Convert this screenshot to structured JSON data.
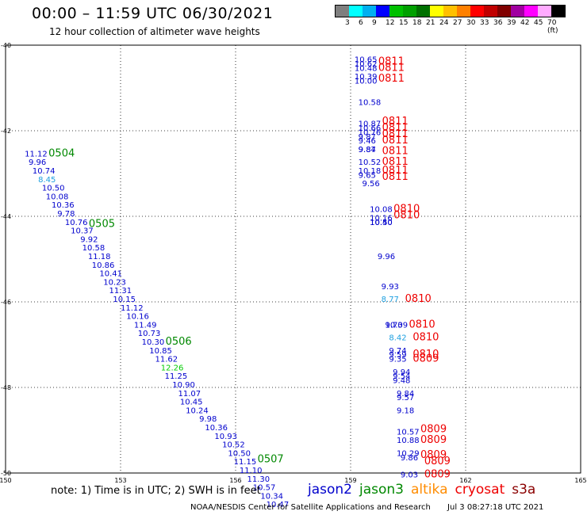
{
  "header": {
    "title": "00:00 – 11:59 UTC 06/30/2021",
    "subtitle": "12 hour collection of altimeter wave heights"
  },
  "color_scale": {
    "labels": [
      "3",
      "6",
      "9",
      "12",
      "15",
      "18",
      "21",
      "24",
      "27",
      "30",
      "33",
      "36",
      "39",
      "42",
      "45",
      "70 (ft)"
    ],
    "colors": [
      "#7f7f7f",
      "#00ffff",
      "#00b0f0",
      "#0000ff",
      "#00c000",
      "#00a000",
      "#007000",
      "#ffff00",
      "#ffc000",
      "#ff8000",
      "#ff0000",
      "#c00000",
      "#800000",
      "#a000a0",
      "#ff00ff",
      "#ffaaff",
      "#000000"
    ]
  },
  "axes": {
    "lat_labels": [
      "-40",
      "-42",
      "-44",
      "-46",
      "-48",
      "-50"
    ],
    "lon_labels": [
      "150",
      "153",
      "156",
      "159",
      "162",
      "165"
    ]
  },
  "passes": [
    {
      "satellite": "jason3",
      "times": [
        {
          "label": "0504",
          "lat": -42.6
        },
        {
          "label": "0505",
          "lat": -44.25
        },
        {
          "label": "0506",
          "lat": -47.0
        },
        {
          "label": "0507",
          "lat": -49.75
        }
      ],
      "observations": [
        {
          "lat": -42.6,
          "lon": 150.5,
          "value": "11.12",
          "color": "#0000cd"
        },
        {
          "lat": -42.8,
          "lon": 150.6,
          "value": "9.96",
          "color": "#0000cd"
        },
        {
          "lat": -43.0,
          "lon": 150.7,
          "value": "10.74",
          "color": "#0000cd"
        },
        {
          "lat": -43.2,
          "lon": 150.85,
          "value": "8.45",
          "color": "#1ea0e0"
        },
        {
          "lat": -43.4,
          "lon": 150.95,
          "value": "10.50",
          "color": "#0000cd"
        },
        {
          "lat": -43.6,
          "lon": 151.05,
          "value": "10.08",
          "color": "#0000cd"
        },
        {
          "lat": -43.8,
          "lon": 151.2,
          "value": "10.36",
          "color": "#0000cd"
        },
        {
          "lat": -44.0,
          "lon": 151.35,
          "value": "9.78",
          "color": "#0000cd"
        },
        {
          "lat": -44.2,
          "lon": 151.55,
          "value": "10.76",
          "color": "#0000cd"
        },
        {
          "lat": -44.4,
          "lon": 151.7,
          "value": "10.37",
          "color": "#0000cd"
        },
        {
          "lat": -44.6,
          "lon": 151.95,
          "value": "9.92",
          "color": "#0000cd"
        },
        {
          "lat": -44.8,
          "lon": 152.0,
          "value": "10.58",
          "color": "#0000cd"
        },
        {
          "lat": -45.0,
          "lon": 152.15,
          "value": "11.18",
          "color": "#0000cd"
        },
        {
          "lat": -45.2,
          "lon": 152.25,
          "value": "10.86",
          "color": "#0000cd"
        },
        {
          "lat": -45.4,
          "lon": 152.45,
          "value": "10.41",
          "color": "#0000cd"
        },
        {
          "lat": -45.6,
          "lon": 152.55,
          "value": "10.23",
          "color": "#0000cd"
        },
        {
          "lat": -45.8,
          "lon": 152.7,
          "value": "11.31",
          "color": "#0000cd"
        },
        {
          "lat": -46.0,
          "lon": 152.8,
          "value": "10.15",
          "color": "#0000cd"
        },
        {
          "lat": -46.2,
          "lon": 153.0,
          "value": "11.12",
          "color": "#0000cd"
        },
        {
          "lat": -46.4,
          "lon": 153.15,
          "value": "10.16",
          "color": "#0000cd"
        },
        {
          "lat": -46.6,
          "lon": 153.35,
          "value": "11.49",
          "color": "#0000cd"
        },
        {
          "lat": -46.8,
          "lon": 153.45,
          "value": "10.73",
          "color": "#0000cd"
        },
        {
          "lat": -47.0,
          "lon": 153.55,
          "value": "10.30",
          "color": "#0000cd"
        },
        {
          "lat": -47.2,
          "lon": 153.75,
          "value": "10.85",
          "color": "#0000cd"
        },
        {
          "lat": -47.4,
          "lon": 153.9,
          "value": "11.62",
          "color": "#0000cd"
        },
        {
          "lat": -47.6,
          "lon": 154.05,
          "value": "12.26",
          "color": "#00cc00"
        },
        {
          "lat": -47.8,
          "lon": 154.15,
          "value": "11.25",
          "color": "#0000cd"
        },
        {
          "lat": -48.0,
          "lon": 154.35,
          "value": "10.90",
          "color": "#0000cd"
        },
        {
          "lat": -48.2,
          "lon": 154.5,
          "value": "11.07",
          "color": "#0000cd"
        },
        {
          "lat": -48.4,
          "lon": 154.55,
          "value": "10.45",
          "color": "#0000cd"
        },
        {
          "lat": -48.6,
          "lon": 154.7,
          "value": "10.24",
          "color": "#0000cd"
        },
        {
          "lat": -48.8,
          "lon": 155.05,
          "value": "9.98",
          "color": "#0000cd"
        },
        {
          "lat": -49.0,
          "lon": 155.2,
          "value": "10.36",
          "color": "#0000cd"
        },
        {
          "lat": -49.2,
          "lon": 155.45,
          "value": "10.93",
          "color": "#0000cd"
        },
        {
          "lat": -49.4,
          "lon": 155.65,
          "value": "10.52",
          "color": "#0000cd"
        },
        {
          "lat": -49.6,
          "lon": 155.8,
          "value": "10.50",
          "color": "#0000cd"
        },
        {
          "lat": -49.8,
          "lon": 155.95,
          "value": "11.15",
          "color": "#0000cd"
        },
        {
          "lat": -50.0,
          "lon": 156.1,
          "value": "11.10",
          "color": "#0000cd"
        },
        {
          "lat": -50.2,
          "lon": 156.3,
          "value": "11.30",
          "color": "#0000cd"
        },
        {
          "lat": -50.4,
          "lon": 156.45,
          "value": "10.57",
          "color": "#0000cd"
        },
        {
          "lat": -50.6,
          "lon": 156.65,
          "value": "10.34",
          "color": "#0000cd"
        },
        {
          "lat": -50.8,
          "lon": 156.8,
          "value": "10.47",
          "color": "#0000cd"
        }
      ]
    },
    {
      "satellite": "cryosat",
      "times": [
        {
          "label": "0811",
          "lat": -40.45
        },
        {
          "label": "0811",
          "lat": -40.6
        },
        {
          "label": "0811",
          "lat": -40.85
        },
        {
          "label": "0811",
          "lat": -41.85
        },
        {
          "label": "0811",
          "lat": -42.0
        },
        {
          "label": "0811",
          "lat": -42.15
        },
        {
          "label": "0811",
          "lat": -42.3
        },
        {
          "label": "0811",
          "lat": -42.55
        },
        {
          "label": "0811",
          "lat": -42.8
        },
        {
          "label": "0811",
          "lat": -43.0
        },
        {
          "label": "0811",
          "lat": -43.15
        },
        {
          "label": "0810",
          "lat": -43.9
        },
        {
          "label": "0810",
          "lat": -44.05
        },
        {
          "label": "0810",
          "lat": -46.0
        },
        {
          "label": "0810",
          "lat": -46.6
        },
        {
          "label": "0810",
          "lat": -46.9
        },
        {
          "label": "0810",
          "lat": -47.3
        },
        {
          "label": "0809",
          "lat": -47.4
        },
        {
          "label": "0809",
          "lat": -49.05
        },
        {
          "label": "0809",
          "lat": -49.3
        },
        {
          "label": "0809",
          "lat": -49.65
        },
        {
          "label": "0809",
          "lat": -49.8
        },
        {
          "label": "0809",
          "lat": -50.1
        }
      ],
      "observations": [
        {
          "lat": -40.4,
          "lon": 159.1,
          "value": "10.65",
          "color": "#0000cd"
        },
        {
          "lat": -40.5,
          "lon": 159.1,
          "value": "10.62",
          "color": "#0000cd"
        },
        {
          "lat": -40.6,
          "lon": 159.1,
          "value": "10.48",
          "color": "#0000cd"
        },
        {
          "lat": -40.8,
          "lon": 159.1,
          "value": "10.39",
          "color": "#0000cd"
        },
        {
          "lat": -40.9,
          "lon": 159.1,
          "value": "10.00",
          "color": "#0000cd"
        },
        {
          "lat": -41.4,
          "lon": 159.2,
          "value": "10.58",
          "color": "#0000cd"
        },
        {
          "lat": -41.9,
          "lon": 159.2,
          "value": "10.87",
          "color": "#0000cd"
        },
        {
          "lat": -42.0,
          "lon": 159.2,
          "value": "10.66",
          "color": "#0000cd"
        },
        {
          "lat": -42.1,
          "lon": 159.2,
          "value": "10.76",
          "color": "#0000cd"
        },
        {
          "lat": -42.2,
          "lon": 159.2,
          "value": "9.87",
          "color": "#0000cd"
        },
        {
          "lat": -42.3,
          "lon": 159.2,
          "value": "9.46",
          "color": "#0000cd"
        },
        {
          "lat": -42.5,
          "lon": 159.2,
          "value": "9.84",
          "color": "#0000cd"
        },
        {
          "lat": -42.5,
          "lon": 159.2,
          "value": "9.87",
          "color": "#0000cd"
        },
        {
          "lat": -42.8,
          "lon": 159.2,
          "value": "10.52",
          "color": "#0000cd"
        },
        {
          "lat": -43.0,
          "lon": 159.2,
          "value": "10.18",
          "color": "#0000cd"
        },
        {
          "lat": -43.1,
          "lon": 159.2,
          "value": "9.65",
          "color": "#0000cd"
        },
        {
          "lat": -43.3,
          "lon": 159.3,
          "value": "9.56",
          "color": "#0000cd"
        },
        {
          "lat": -43.9,
          "lon": 159.5,
          "value": "10.08",
          "color": "#0000cd"
        },
        {
          "lat": -44.1,
          "lon": 159.5,
          "value": "10.16",
          "color": "#0000cd"
        },
        {
          "lat": -44.2,
          "lon": 159.5,
          "value": "10.50",
          "color": "#0000cd"
        },
        {
          "lat": -44.2,
          "lon": 159.5,
          "value": "10.40",
          "color": "#0000cd"
        },
        {
          "lat": -45.0,
          "lon": 159.7,
          "value": "9.96",
          "color": "#0000cd"
        },
        {
          "lat": -45.7,
          "lon": 159.8,
          "value": "9.93",
          "color": "#0000cd"
        },
        {
          "lat": -46.0,
          "lon": 159.8,
          "value": "8.77",
          "color": "#1ea0e0"
        },
        {
          "lat": -46.6,
          "lon": 159.9,
          "value": "10.39",
          "color": "#0000cd"
        },
        {
          "lat": -46.6,
          "lon": 159.9,
          "value": "9.70",
          "color": "#0000cd"
        },
        {
          "lat": -46.9,
          "lon": 160.0,
          "value": "8.42",
          "color": "#1ea0e0"
        },
        {
          "lat": -47.2,
          "lon": 160.0,
          "value": "9.74",
          "color": "#0000cd"
        },
        {
          "lat": -47.3,
          "lon": 160.0,
          "value": "9.59",
          "color": "#0000cd"
        },
        {
          "lat": -47.4,
          "lon": 160.0,
          "value": "9.35",
          "color": "#0000cd"
        },
        {
          "lat": -47.7,
          "lon": 160.1,
          "value": "9.94",
          "color": "#0000cd"
        },
        {
          "lat": -47.8,
          "lon": 160.1,
          "value": "9.54",
          "color": "#0000cd"
        },
        {
          "lat": -47.9,
          "lon": 160.1,
          "value": "9.48",
          "color": "#0000cd"
        },
        {
          "lat": -48.2,
          "lon": 160.2,
          "value": "9.84",
          "color": "#0000cd"
        },
        {
          "lat": -48.3,
          "lon": 160.2,
          "value": "9.57",
          "color": "#0000cd"
        },
        {
          "lat": -48.6,
          "lon": 160.2,
          "value": "9.18",
          "color": "#0000cd"
        },
        {
          "lat": -49.1,
          "lon": 160.2,
          "value": "10.57",
          "color": "#0000cd"
        },
        {
          "lat": -49.3,
          "lon": 160.2,
          "value": "10.88",
          "color": "#0000cd"
        },
        {
          "lat": -49.6,
          "lon": 160.2,
          "value": "10.29",
          "color": "#0000cd"
        },
        {
          "lat": -49.7,
          "lon": 160.3,
          "value": "9.86",
          "color": "#0000cd"
        },
        {
          "lat": -50.1,
          "lon": 160.3,
          "value": "9.03",
          "color": "#0000cd"
        }
      ]
    }
  ],
  "note": "note:  1) Time is in UTC;  2) SWH is in feet",
  "legend": [
    {
      "label": "jason2",
      "color": "#0000cc"
    },
    {
      "label": "jason3",
      "color": "#008800"
    },
    {
      "label": "altika",
      "color": "#ff8c00"
    },
    {
      "label": "cryosat",
      "color": "#ee0000"
    },
    {
      "label": "s3a",
      "color": "#8b0000"
    }
  ],
  "footer": {
    "credit": "NOAA/NESDIS Center for Satellite Applications and Research",
    "timestamp": "Jul  3 08:27:18 UTC 2021"
  }
}
